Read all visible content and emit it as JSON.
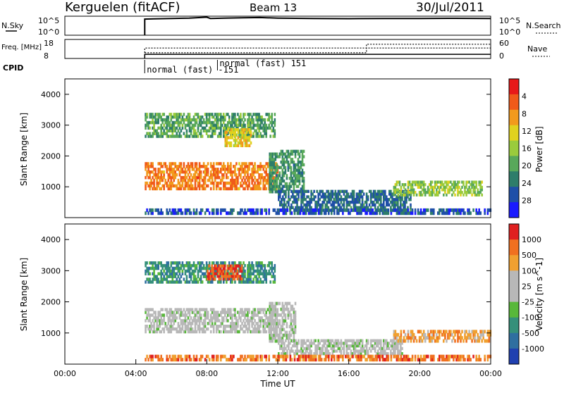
{
  "header": {
    "station": "Kerguelen (fitACF)",
    "beam": "Beam 13",
    "date": "30/Jul/2011"
  },
  "chart_data": [
    {
      "type": "line",
      "name": "nsky-panel",
      "left_label": "N.Sky",
      "left_ticks": [
        "10^5",
        "10^0"
      ],
      "right_label": "N.Search",
      "right_ticks": [
        "10^5",
        "10^0"
      ],
      "x_range_hours": [
        0,
        24
      ],
      "series": [
        {
          "x": [
            4.5,
            4.5,
            5.0,
            6.0,
            7.0,
            8.0,
            8.2,
            9.0,
            10.0,
            11.0,
            12.0,
            14.0,
            16.0,
            18.0,
            20.0,
            22.0,
            24.0
          ],
          "values": [
            0,
            0.85,
            0.86,
            0.88,
            0.9,
            0.95,
            0.88,
            0.9,
            0.92,
            0.93,
            0.9,
            0.88,
            0.87,
            0.88,
            0.88,
            0.89,
            0.88
          ]
        }
      ]
    },
    {
      "type": "line",
      "name": "freq-panel",
      "left_label": "Freq. [MHz]",
      "left_ticks": [
        "18",
        "8"
      ],
      "right_label": "Nave",
      "right_ticks": [
        "60",
        "0"
      ],
      "x_range_hours": [
        0,
        24
      ],
      "cpid_label": "CPID",
      "cpid_annotations": [
        {
          "time_hours": 4.5,
          "text": "normal (fast) -151"
        },
        {
          "time_hours": 8.6,
          "text": "normal (fast) 151"
        }
      ],
      "series": [
        {
          "x": [
            4.5,
            4.5,
            17.0,
            17.0,
            24.0
          ],
          "values": [
            0.0,
            0.22,
            0.22,
            0.22,
            0.22
          ]
        },
        {
          "x": [
            4.5,
            4.5,
            17.0,
            17.0,
            24.0
          ],
          "values": [
            0.0,
            0.55,
            0.55,
            0.55,
            0.55
          ]
        },
        {
          "x": [
            4.5,
            17.0,
            17.0,
            24.0
          ],
          "values": [
            0.3,
            0.3,
            0.75,
            0.75
          ]
        }
      ]
    },
    {
      "type": "heatmap",
      "name": "power-panel",
      "ylabel": "Slant Range [km]",
      "y_ticks": [
        "1000",
        "2000",
        "3000",
        "4000"
      ],
      "x_ticks": [
        "00:00",
        "04:00",
        "08:00",
        "12:00",
        "16:00",
        "20:00",
        "00:00"
      ],
      "colorbar_label": "Power [dB]",
      "colorbar_ticks": [
        "4",
        "8",
        "12",
        "16",
        "20",
        "24",
        "28"
      ],
      "colorbar_colors": [
        "#1a1aff",
        "#1f4fa8",
        "#2e7d6a",
        "#58a85a",
        "#9acb3c",
        "#e0d21f",
        "#f29a1c",
        "#f05a1a",
        "#e81919"
      ],
      "regions": [
        {
          "t0": 4.5,
          "t1": 12.0,
          "r0": 900,
          "r1": 1800,
          "level": 0.75
        },
        {
          "t0": 4.5,
          "t1": 11.8,
          "r0": 2600,
          "r1": 3400,
          "level": 0.35
        },
        {
          "t0": 9.0,
          "t1": 10.5,
          "r0": 2300,
          "r1": 2900,
          "level": 0.6
        },
        {
          "t0": 11.5,
          "t1": 13.5,
          "r0": 800,
          "r1": 2200,
          "level": 0.3
        },
        {
          "t0": 12.0,
          "t1": 19.5,
          "r0": 200,
          "r1": 900,
          "level": 0.2
        },
        {
          "t0": 18.5,
          "t1": 23.5,
          "r0": 700,
          "r1": 1200,
          "level": 0.45
        },
        {
          "t0": 4.5,
          "t1": 24.0,
          "r0": 100,
          "r1": 300,
          "level": 0.15
        }
      ]
    },
    {
      "type": "heatmap",
      "name": "velocity-panel",
      "ylabel": "Slant Range [km]",
      "y_ticks": [
        "1000",
        "2000",
        "3000",
        "4000"
      ],
      "x_ticks": [
        "00:00",
        "04:00",
        "08:00",
        "12:00",
        "16:00",
        "20:00",
        "00:00"
      ],
      "xlabel": "Time UT",
      "colorbar_label": "Velocity [m s^-1]",
      "colorbar_ticks": [
        "1000",
        "500",
        "100",
        "25",
        "-25",
        "-100",
        "-500",
        "-1000"
      ],
      "colorbar_colors": [
        "#2040b0",
        "#2f6fa0",
        "#35907a",
        "#58b83a",
        "#b8b8b8",
        "#b8b8b8",
        "#f0a030",
        "#f07020",
        "#e02020"
      ],
      "regions": [
        {
          "t0": 4.5,
          "t1": 12.0,
          "r0": 1000,
          "r1": 1800,
          "level": 0.5
        },
        {
          "t0": 4.5,
          "t1": 11.8,
          "r0": 2600,
          "r1": 3300,
          "level": 0.25
        },
        {
          "t0": 8.0,
          "t1": 10.0,
          "r0": 2700,
          "r1": 3200,
          "level": 0.85
        },
        {
          "t0": 11.5,
          "t1": 13.0,
          "r0": 700,
          "r1": 2000,
          "level": 0.5
        },
        {
          "t0": 12.0,
          "t1": 19.0,
          "r0": 300,
          "r1": 800,
          "level": 0.5
        },
        {
          "t0": 18.5,
          "t1": 24.0,
          "r0": 700,
          "r1": 1100,
          "level": 0.7
        },
        {
          "t0": 4.5,
          "t1": 24.0,
          "r0": 100,
          "r1": 300,
          "level": 0.8
        }
      ]
    }
  ]
}
